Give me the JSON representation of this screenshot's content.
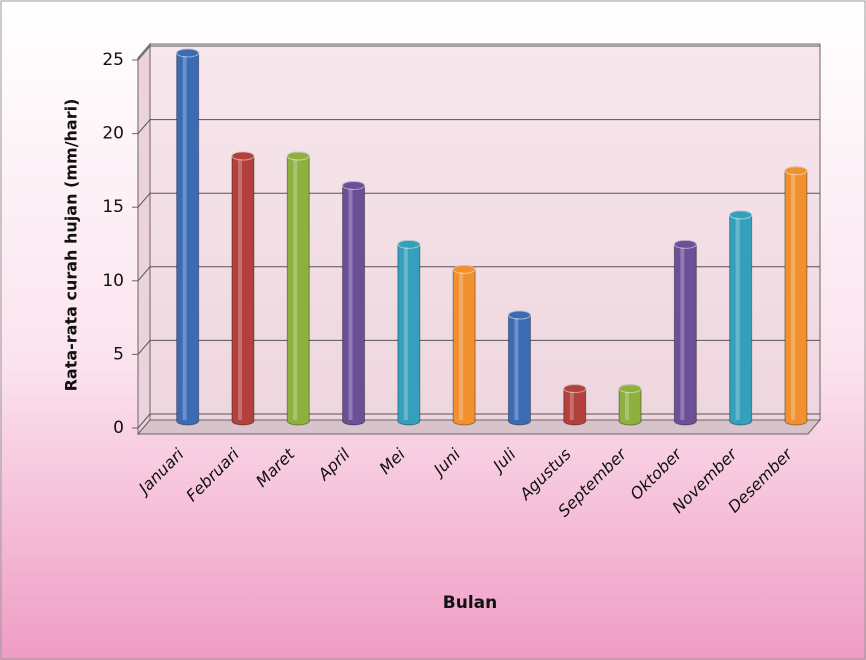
{
  "chart_data": {
    "type": "bar",
    "x_label": "Bulan",
    "y_label": "Rata-rata curah hujan (mm/hari)",
    "categories": [
      "Januari",
      "Februari",
      "Maret",
      "April",
      "Mei",
      "Juni",
      "Juli",
      "Agustus",
      "September",
      "Oktober",
      "November",
      "Desember"
    ],
    "values": [
      25,
      18,
      18,
      16,
      12,
      10.3,
      7.2,
      2.2,
      2.2,
      12,
      14,
      17
    ],
    "colors": [
      "#3b6cb3",
      "#b2403d",
      "#8db03f",
      "#6b4f97",
      "#35a0bb",
      "#f0902f",
      "#3b6cb3",
      "#b2403d",
      "#8db03f",
      "#6b4f97",
      "#35a0bb",
      "#f0902f"
    ],
    "ylim": [
      0,
      25
    ],
    "yticks": [
      0,
      5,
      10,
      15,
      20,
      25
    ],
    "grid": true
  }
}
